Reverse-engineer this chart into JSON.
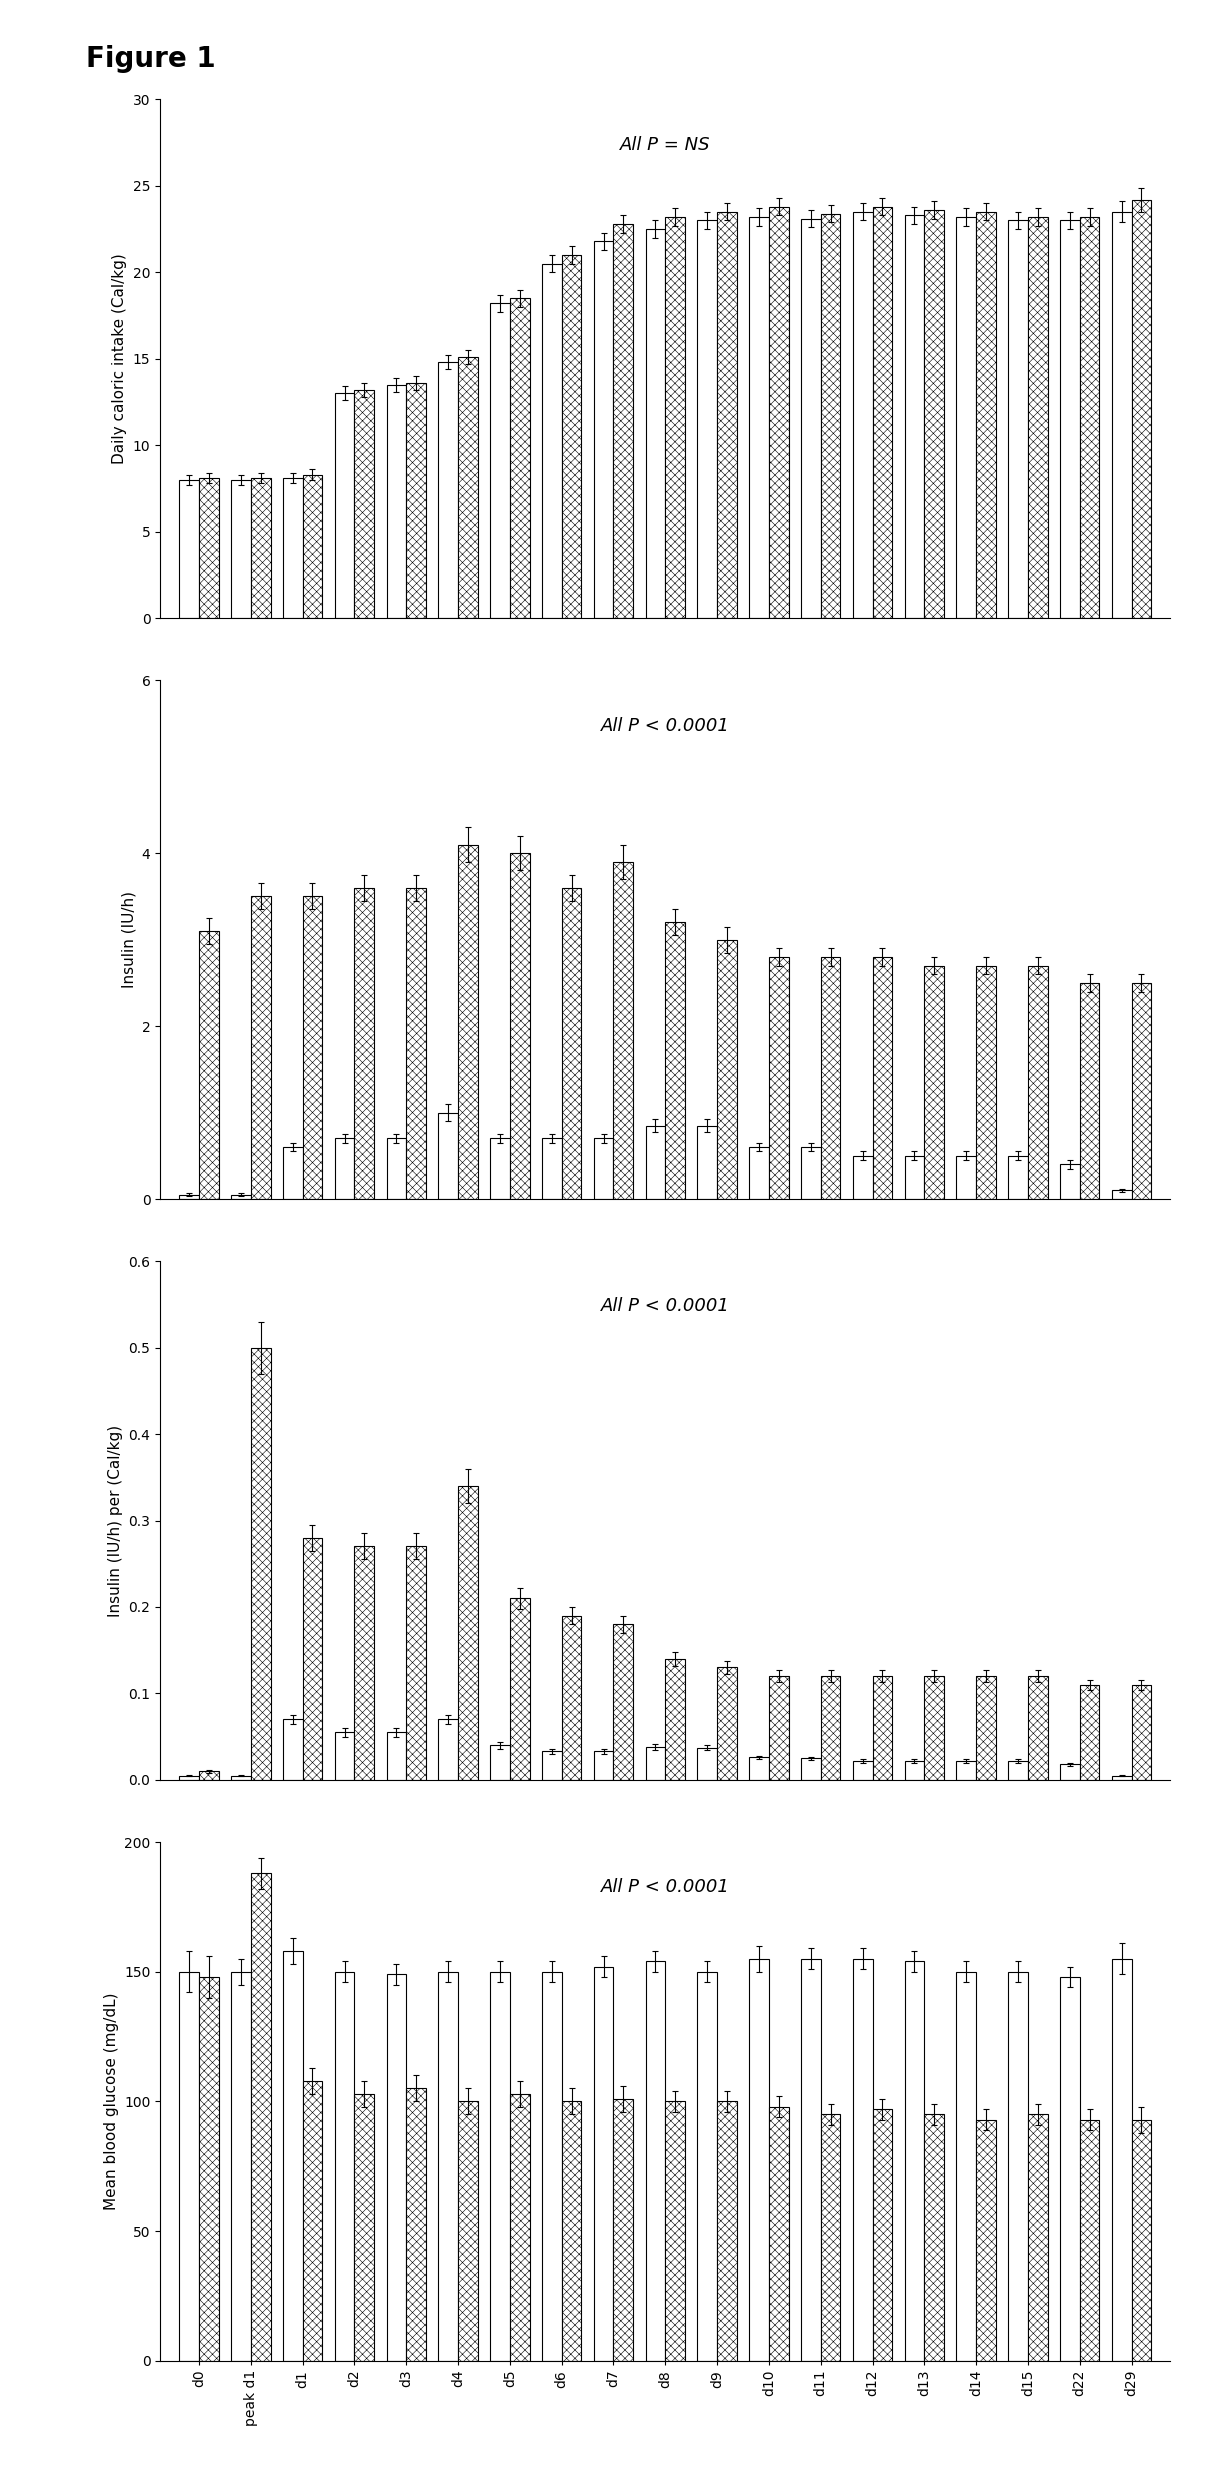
{
  "figure_title": "Figure 1",
  "categories": [
    "d0",
    "peak d1",
    "d1",
    "d2",
    "d3",
    "d4",
    "d5",
    "d6",
    "d7",
    "d8",
    "d9",
    "d10",
    "d11",
    "d12",
    "d13",
    "d14",
    "d15",
    "d22",
    "d29"
  ],
  "panel1": {
    "title": "All P = NS",
    "ylabel": "Daily caloric intake (Cal/kg)",
    "ylim": [
      0,
      30
    ],
    "yticks": [
      0,
      5,
      10,
      15,
      20,
      25,
      30
    ],
    "white_bars": [
      8.0,
      8.0,
      8.1,
      13.0,
      13.5,
      14.8,
      18.2,
      20.5,
      21.8,
      22.5,
      23.0,
      23.2,
      23.1,
      23.5,
      23.3,
      23.2,
      23.0,
      23.0,
      23.5
    ],
    "white_err": [
      0.3,
      0.3,
      0.3,
      0.4,
      0.4,
      0.4,
      0.5,
      0.5,
      0.5,
      0.5,
      0.5,
      0.5,
      0.5,
      0.5,
      0.5,
      0.5,
      0.5,
      0.5,
      0.6
    ],
    "hatch_bars": [
      8.1,
      8.1,
      8.3,
      13.2,
      13.6,
      15.1,
      18.5,
      21.0,
      22.8,
      23.2,
      23.5,
      23.8,
      23.4,
      23.8,
      23.6,
      23.5,
      23.2,
      23.2,
      24.2
    ],
    "hatch_err": [
      0.3,
      0.3,
      0.3,
      0.4,
      0.4,
      0.4,
      0.5,
      0.5,
      0.5,
      0.5,
      0.5,
      0.5,
      0.5,
      0.5,
      0.5,
      0.5,
      0.5,
      0.5,
      0.7
    ]
  },
  "panel2": {
    "title": "All P < 0.0001",
    "ylabel": "Insulin (IU/h)",
    "ylim": [
      0,
      6
    ],
    "yticks": [
      0,
      2,
      4,
      6
    ],
    "white_bars": [
      0.05,
      0.05,
      0.6,
      0.7,
      0.7,
      1.0,
      0.7,
      0.7,
      0.7,
      0.85,
      0.85,
      0.6,
      0.6,
      0.5,
      0.5,
      0.5,
      0.5,
      0.4,
      0.1
    ],
    "white_err": [
      0.02,
      0.02,
      0.05,
      0.05,
      0.05,
      0.1,
      0.05,
      0.05,
      0.05,
      0.07,
      0.07,
      0.05,
      0.05,
      0.05,
      0.05,
      0.05,
      0.05,
      0.05,
      0.02
    ],
    "hatch_bars": [
      3.1,
      3.5,
      3.5,
      3.6,
      3.6,
      4.1,
      4.0,
      3.6,
      3.9,
      3.2,
      3.0,
      2.8,
      2.8,
      2.8,
      2.7,
      2.7,
      2.7,
      2.5,
      2.5
    ],
    "hatch_err": [
      0.15,
      0.15,
      0.15,
      0.15,
      0.15,
      0.2,
      0.2,
      0.15,
      0.2,
      0.15,
      0.15,
      0.1,
      0.1,
      0.1,
      0.1,
      0.1,
      0.1,
      0.1,
      0.1
    ]
  },
  "panel3": {
    "title": "All P < 0.0001",
    "ylabel": "Insulin (IU/h) per (Cal/kg)",
    "ylim": [
      0,
      0.6
    ],
    "yticks": [
      0.0,
      0.1,
      0.2,
      0.3,
      0.4,
      0.5,
      0.6
    ],
    "white_bars": [
      0.005,
      0.005,
      0.07,
      0.055,
      0.055,
      0.07,
      0.04,
      0.033,
      0.033,
      0.038,
      0.037,
      0.026,
      0.025,
      0.022,
      0.022,
      0.022,
      0.022,
      0.018,
      0.005
    ],
    "white_err": [
      0.001,
      0.001,
      0.005,
      0.005,
      0.005,
      0.005,
      0.004,
      0.003,
      0.003,
      0.003,
      0.003,
      0.002,
      0.002,
      0.002,
      0.002,
      0.002,
      0.002,
      0.002,
      0.001
    ],
    "hatch_bars": [
      0.01,
      0.5,
      0.28,
      0.27,
      0.27,
      0.34,
      0.21,
      0.19,
      0.18,
      0.14,
      0.13,
      0.12,
      0.12,
      0.12,
      0.12,
      0.12,
      0.12,
      0.11,
      0.11
    ],
    "hatch_err": [
      0.002,
      0.03,
      0.015,
      0.015,
      0.015,
      0.02,
      0.012,
      0.01,
      0.01,
      0.008,
      0.008,
      0.007,
      0.007,
      0.007,
      0.007,
      0.007,
      0.007,
      0.006,
      0.006
    ]
  },
  "panel4": {
    "title": "All P < 0.0001",
    "ylabel": "Mean blood glucose (mg/dL)",
    "ylim": [
      0,
      200
    ],
    "yticks": [
      0,
      50,
      100,
      150,
      200
    ],
    "white_bars": [
      150,
      150,
      158,
      150,
      149,
      150,
      150,
      150,
      152,
      154,
      150,
      155,
      155,
      155,
      154,
      150,
      150,
      148,
      155
    ],
    "white_err": [
      8,
      5,
      5,
      4,
      4,
      4,
      4,
      4,
      4,
      4,
      4,
      5,
      4,
      4,
      4,
      4,
      4,
      4,
      6
    ],
    "hatch_bars": [
      148,
      188,
      108,
      103,
      105,
      100,
      103,
      100,
      101,
      100,
      100,
      98,
      95,
      97,
      95,
      93,
      95,
      93,
      93
    ],
    "hatch_err": [
      8,
      6,
      5,
      5,
      5,
      5,
      5,
      5,
      5,
      4,
      4,
      4,
      4,
      4,
      4,
      4,
      4,
      4,
      5
    ]
  },
  "bar_width": 0.38,
  "hatch_pattern": "xxxx",
  "white_color": "#ffffff",
  "edge_color": "#000000"
}
